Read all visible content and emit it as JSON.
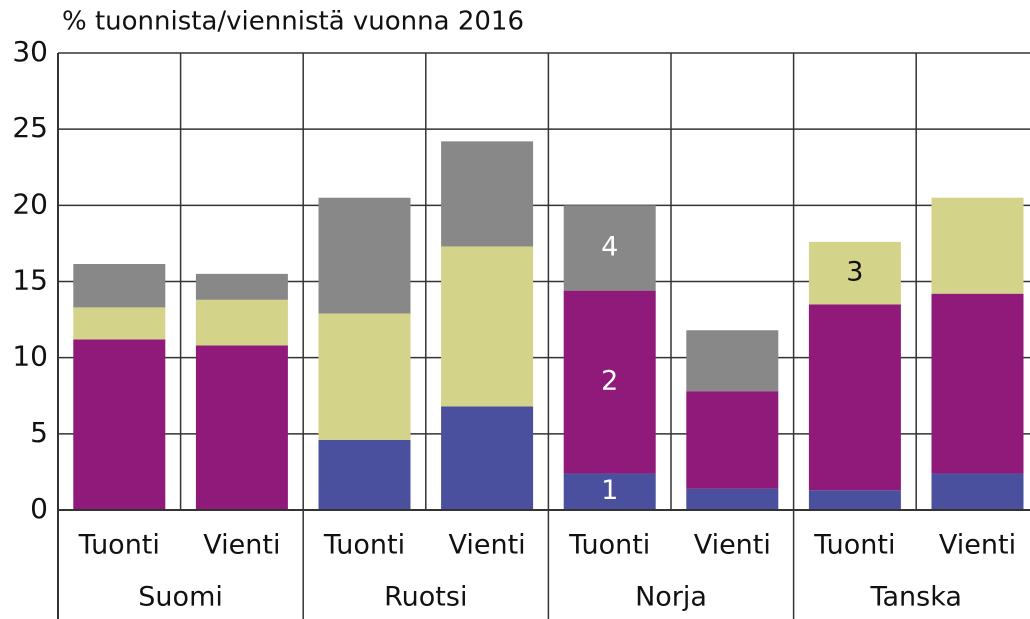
{
  "chart_data": {
    "type": "stacked_bar",
    "title": "% tuonnista/viennistä vuonna 2016",
    "categories": [
      "Tuonti",
      "Vienti",
      "Tuonti",
      "Vienti",
      "Tuonti",
      "Vienti",
      "Tuonti",
      "Vienti"
    ],
    "groups": [
      "Suomi",
      "Ruotsi",
      "Norja",
      "Tanska"
    ],
    "series": [
      {
        "name": "1",
        "color": "#4a4f9e",
        "values": [
          0,
          0,
          4.6,
          6.8,
          2.4,
          1.4,
          1.3,
          2.4
        ]
      },
      {
        "name": "2",
        "color": "#8f1a7a",
        "values": [
          11.2,
          10.8,
          0,
          0,
          12.0,
          6.4,
          12.2,
          11.8
        ]
      },
      {
        "name": "3",
        "color": "#d3d38a",
        "values": [
          2.1,
          3.0,
          8.3,
          10.5,
          0,
          0,
          4.1,
          6.3
        ]
      },
      {
        "name": "4",
        "color": "#888888",
        "values": [
          2.85,
          1.7,
          7.6,
          6.9,
          5.6,
          4.0,
          0,
          0
        ]
      }
    ],
    "ylim": [
      0,
      30
    ],
    "yticks": [
      0,
      5,
      10,
      15,
      20,
      25,
      30
    ],
    "grid": true
  }
}
